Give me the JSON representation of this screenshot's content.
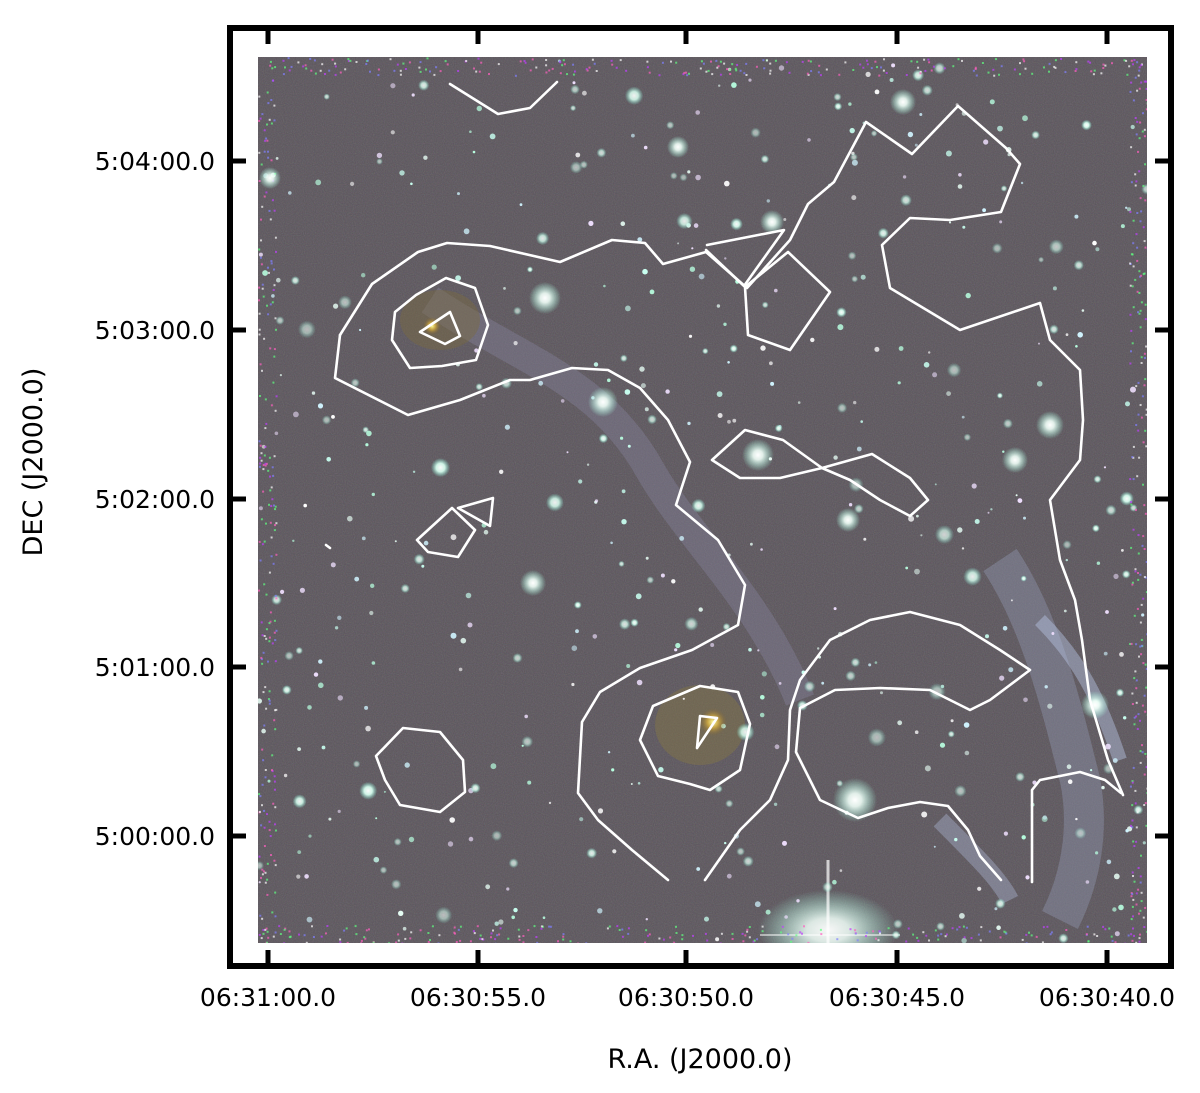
{
  "figure": {
    "xlabel": "R.A. (J2000.0)",
    "ylabel": "DEC (J2000.0)",
    "x_ticks": [
      "06:31:00.0",
      "06:30:55.0",
      "06:30:50.0",
      "06:30:45.0",
      "06:30:40.0"
    ],
    "y_ticks": [
      "5:04:00.0",
      "5:03:00.0",
      "5:02:00.0",
      "5:01:00.0",
      "5:00:00.0"
    ],
    "image_description_colors": {
      "background": "#5b555c",
      "nebula": "#8a8ba6",
      "stars": "#e6fff4",
      "contours": "#ffffff",
      "frame": "#000000"
    }
  }
}
